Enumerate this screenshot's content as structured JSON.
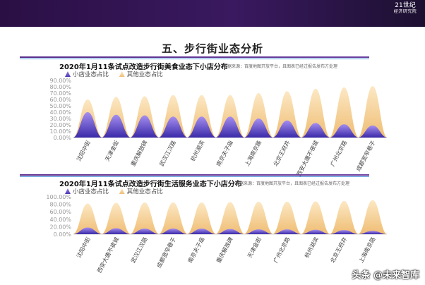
{
  "header": {
    "logo_mark": "21世纪",
    "logo_text": "经济研究院"
  },
  "page_title": "五、步行街业态分析",
  "watermark": "头条 @未来智库",
  "legend": {
    "small_store": "小店业态占比",
    "other": "其他业态占比"
  },
  "colors": {
    "small_store": "#5b45c4",
    "other": "#f2c27e"
  },
  "chart_data": [
    {
      "type": "area",
      "title": "2020年1月11条试点改造步行街美食业态下小店分布",
      "source": "数据来源：百度地图开放平台，且图表已经过报告发布方处理",
      "ylim": [
        0,
        90
      ],
      "yticks": [
        "0.00%",
        "10.00%",
        "20.00%",
        "30.00%",
        "40.00%",
        "50.00%",
        "60.00%",
        "70.00%",
        "80.00%",
        "90.00%"
      ],
      "categories": [
        "沈阳中街",
        "天津金街",
        "重庆解放碑",
        "武汉江汉路",
        "杭州湖滨",
        "南京夫子庙",
        "上海南京路",
        "北京王府井",
        "西安大唐不夜城",
        "广州北京路",
        "成都宽窄巷子"
      ],
      "series": [
        {
          "name": "小店业态占比",
          "values": [
            40,
            36,
            35,
            33,
            33,
            33,
            30,
            27,
            23,
            21,
            19
          ]
        },
        {
          "name": "其他业态占比",
          "values": [
            60,
            64,
            65,
            67,
            67,
            67,
            70,
            73,
            77,
            79,
            81
          ]
        }
      ]
    },
    {
      "type": "area",
      "title": "2020年1月11条试点改造步行街生活服务业态下小店分布",
      "source": "数据来源：百度地图开放平台，且图表已经过报告发布方处理",
      "ylim": [
        0,
        100
      ],
      "yticks": [
        "0.00%",
        "20.00%",
        "40.00%",
        "60.00%",
        "80.00%",
        "100.00%"
      ],
      "categories": [
        "沈阳中街",
        "西安大唐不夜城",
        "武汉江汉路",
        "成都宽窄巷子",
        "南京夫子庙",
        "重庆解放碑",
        "天津金街",
        "广州北京路",
        "杭州湖滨",
        "北京王府井",
        "上海南京路"
      ],
      "series": [
        {
          "name": "小店业态占比",
          "values": [
            18,
            16,
            15,
            15,
            15,
            14,
            13,
            13,
            12,
            11,
            9
          ]
        },
        {
          "name": "其他业态占比",
          "values": [
            82,
            84,
            85,
            85,
            85,
            86,
            87,
            87,
            88,
            89,
            91
          ]
        }
      ]
    }
  ]
}
